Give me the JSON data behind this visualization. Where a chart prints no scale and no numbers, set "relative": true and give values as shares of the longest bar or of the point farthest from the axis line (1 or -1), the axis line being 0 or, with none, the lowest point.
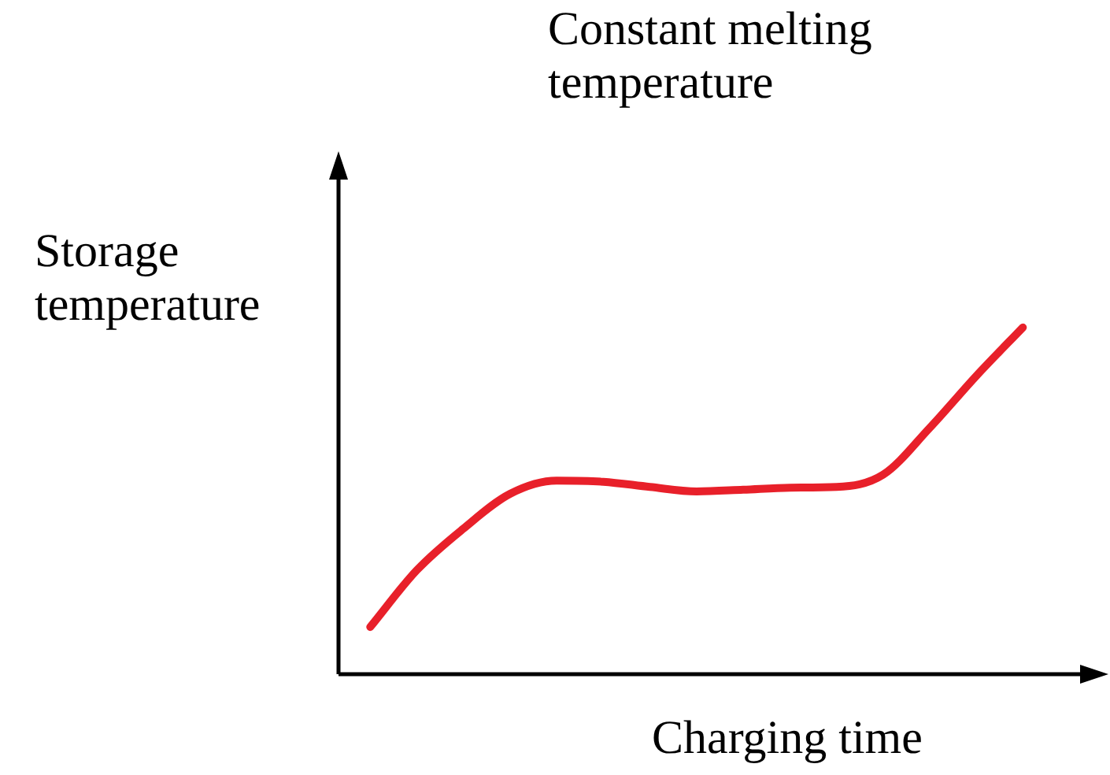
{
  "chart_data": {
    "type": "line",
    "title": "Constant melting temperature",
    "xlabel": "Charging time",
    "ylabel": "Storage temperature",
    "relative": true,
    "categories": [
      null,
      null,
      null,
      null,
      null,
      null,
      null,
      null,
      null,
      null,
      null,
      null,
      null,
      null,
      null
    ],
    "series": [
      {
        "color": "#e8202a",
        "values": [
          0.136,
          0.3,
          0.42,
          0.52,
          0.558,
          0.555,
          0.54,
          0.527,
          0.532,
          0.538,
          0.54,
          0.575,
          0.71,
          0.86,
          1.0
        ]
      }
    ],
    "marker": "none",
    "line_style": "solid",
    "legend": false
  }
}
